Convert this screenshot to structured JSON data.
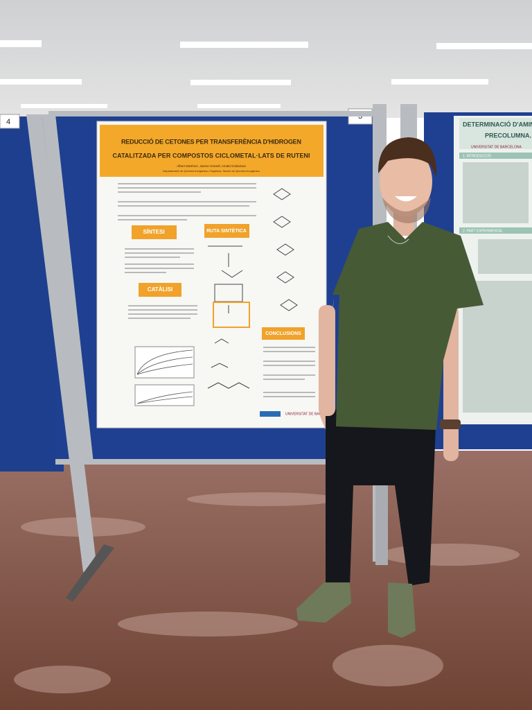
{
  "board_numbers": [
    "4",
    "3"
  ],
  "poster": {
    "title_lines": [
      "REDUCCIÓ DE CETONES PER TRANSFERÈNCIA D'HIDROGEN",
      "CATALITZADA PER COMPOSTOS CICLOMETAL·LATS DE RUTENI"
    ],
    "authors": "Albert Martínez, Jaume Granell, Arnald Grabulosa",
    "department": "Departament de Química Inorgànica i Orgànica, Secció de Química Inorgànica",
    "sections": [
      "SÍNTESI",
      "RUTA SINTÈTICA",
      "CATÀLISI",
      "CONCLUSIONS"
    ],
    "logo": "UNIVERSITAT DE BARCELONA"
  },
  "right_poster": {
    "title_lines": [
      "DETERMINACIÓ D'AMINES BIÒG",
      "PRECOLUMNA. APLICACI"
    ],
    "logo": "UNIVERSITAT DE BARCELONA",
    "sections": [
      "1. INTRODUCCIÓ",
      "2. PART EXPERIMENTAL"
    ]
  }
}
